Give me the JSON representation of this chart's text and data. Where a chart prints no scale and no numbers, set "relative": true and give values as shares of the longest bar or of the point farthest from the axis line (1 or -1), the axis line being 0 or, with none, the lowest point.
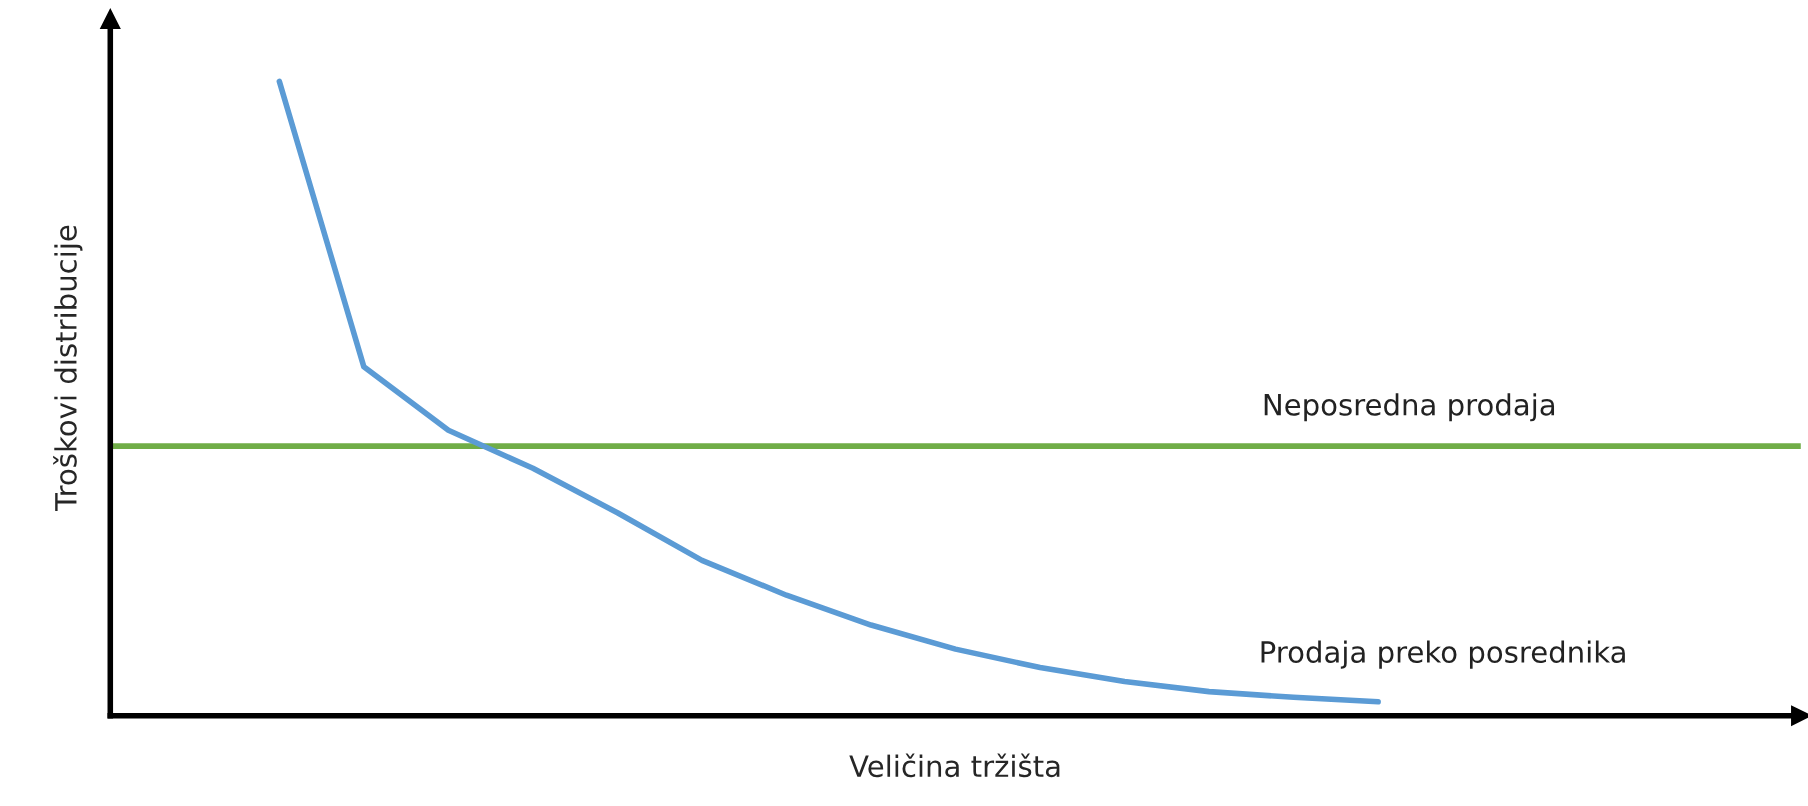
{
  "chart_data": {
    "type": "line",
    "relative": true,
    "xlabel": "Veličina tržišta",
    "ylabel": "Troškovi distribucije",
    "legend": false,
    "marker": "none",
    "line_style": "solid",
    "categories": [
      null,
      null,
      null,
      null,
      null,
      null,
      null,
      null,
      null,
      null,
      null,
      null,
      null,
      null,
      null,
      null,
      null,
      null,
      null,
      null,
      null
    ],
    "series": [
      {
        "name": "Neposredna prodaja",
        "color": "#70ad47",
        "values": [
          0.425,
          0.425,
          0.425,
          0.425,
          0.425,
          0.425,
          0.425,
          0.425,
          0.425,
          0.425,
          0.425,
          0.425,
          0.425,
          0.425,
          0.425,
          0.425,
          0.425,
          0.425,
          0.425,
          0.425,
          0.425
        ]
      },
      {
        "name": "Prodaja preko posrednika",
        "color": "#5b9bd5",
        "values": [
          null,
          null,
          1.0,
          0.55,
          0.45,
          0.39,
          0.32,
          0.245,
          0.19,
          0.143,
          0.105,
          0.076,
          0.054,
          0.038,
          0.029,
          0.022,
          null,
          null,
          null,
          null,
          null
        ]
      }
    ]
  }
}
